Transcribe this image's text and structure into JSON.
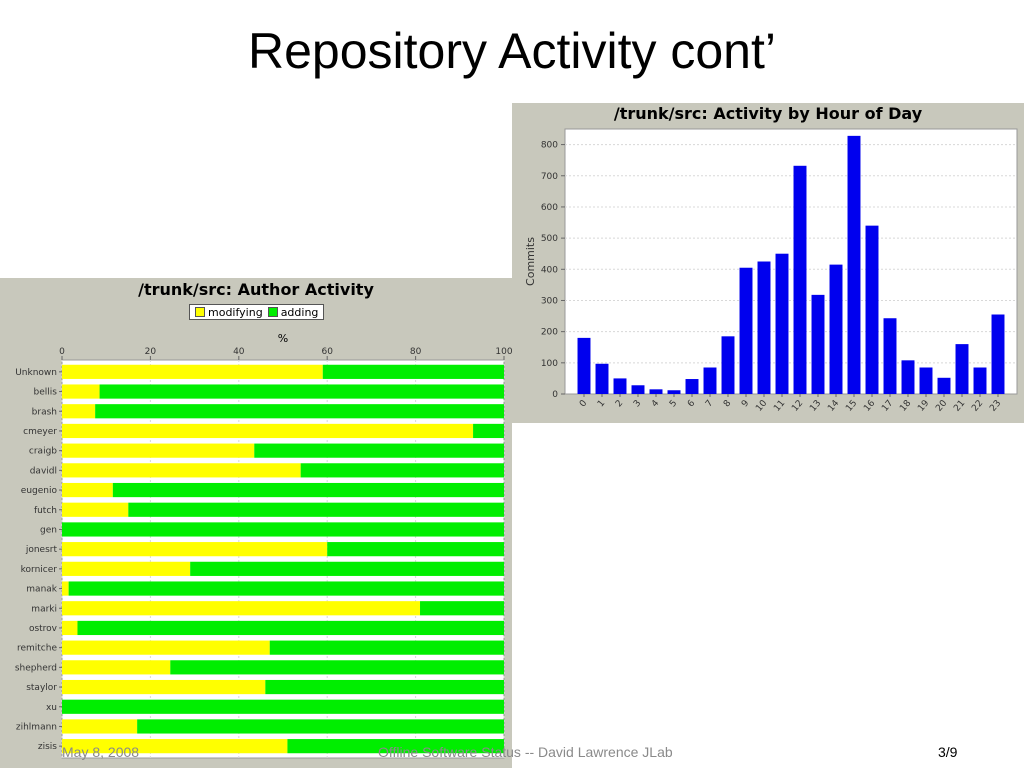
{
  "slide": {
    "title": "Repository Activity cont’",
    "footer_date": "May 8, 2008",
    "footer_text": "Offline Software Status  -- David Lawrence  JLab",
    "page_number": "3/9"
  },
  "colors": {
    "panel_bg": "#c8c8bc",
    "bar_blue": "#0000ee",
    "modifying_yellow": "#ffff00",
    "adding_green": "#00ee00",
    "grid": "#d8d8d8"
  },
  "chart_data": [
    {
      "type": "bar",
      "title": "/trunk/src: Activity by Hour of Day",
      "xlabel": "",
      "ylabel": "Commits",
      "ylim": [
        0,
        850
      ],
      "yticks": [
        0,
        100,
        200,
        300,
        400,
        500,
        600,
        700,
        800
      ],
      "grid": true,
      "categories": [
        "0",
        "1",
        "2",
        "3",
        "4",
        "5",
        "6",
        "7",
        "8",
        "9",
        "10",
        "11",
        "12",
        "13",
        "14",
        "15",
        "16",
        "17",
        "18",
        "19",
        "20",
        "21",
        "22",
        "23"
      ],
      "values": [
        180,
        97,
        50,
        28,
        15,
        12,
        48,
        85,
        185,
        405,
        425,
        450,
        732,
        318,
        415,
        828,
        540,
        243,
        108,
        85,
        52,
        160,
        85,
        255
      ]
    },
    {
      "type": "bar",
      "orientation": "horizontal",
      "stacked": true,
      "title": "/trunk/src: Author Activity",
      "xlabel": "%",
      "xlim": [
        0,
        100
      ],
      "xticks": [
        0,
        20,
        40,
        60,
        80,
        100
      ],
      "grid": true,
      "legend": "top",
      "categories": [
        "Unknown",
        "bellis",
        "brash",
        "cmeyer",
        "craigb",
        "davidl",
        "eugenio",
        "futch",
        "gen",
        "jonesrt",
        "kornicer",
        "manak",
        "marki",
        "ostrov",
        "remitche",
        "shepherd",
        "staylor",
        "xu",
        "zihlmann",
        "zisis"
      ],
      "series": [
        {
          "name": "modifying",
          "values": [
            59,
            8.5,
            7.5,
            93,
            43.5,
            54,
            11.5,
            15,
            0,
            60,
            29,
            1.5,
            81,
            3.5,
            47,
            24.5,
            46,
            0,
            17,
            51
          ]
        },
        {
          "name": "adding",
          "values": [
            41,
            91.5,
            92.5,
            7,
            56.5,
            46,
            88.5,
            85,
            100,
            40,
            71,
            98.5,
            19,
            96.5,
            53,
            75.5,
            54,
            100,
            83,
            49
          ]
        }
      ]
    }
  ]
}
